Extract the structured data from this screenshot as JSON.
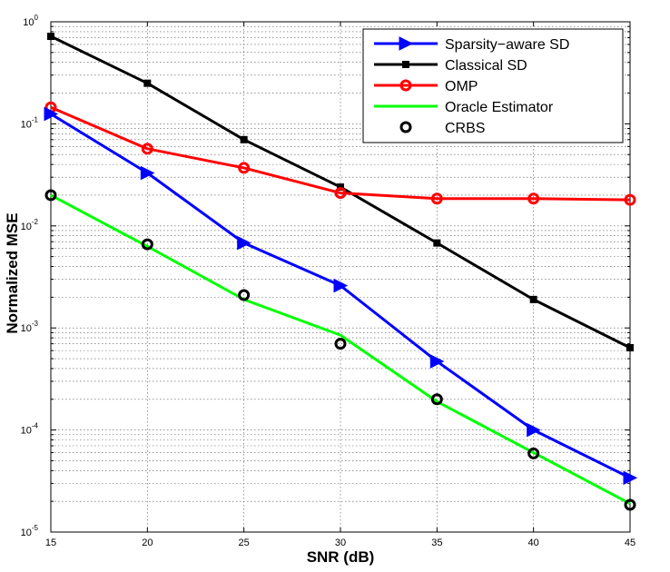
{
  "chart_data": {
    "type": "line",
    "title": "",
    "xlabel": "SNR (dB)",
    "ylabel": "Normalized MSE",
    "yscale": "log",
    "xlim": [
      15,
      45
    ],
    "ylim": [
      1e-05,
      1
    ],
    "grid": true,
    "legend_position": "top-right",
    "x": [
      15,
      20,
      25,
      30,
      35,
      40,
      45
    ],
    "x_ticks": [
      "15",
      "20",
      "25",
      "30",
      "35",
      "40",
      "45"
    ],
    "y_ticks": [
      {
        "base": "10",
        "exp": "0",
        "value": 1
      },
      {
        "base": "10",
        "exp": "-1",
        "value": 0.1
      },
      {
        "base": "10",
        "exp": "-2",
        "value": 0.01
      },
      {
        "base": "10",
        "exp": "-3",
        "value": 0.001
      },
      {
        "base": "10",
        "exp": "-4",
        "value": 0.0001
      },
      {
        "base": "10",
        "exp": "-5",
        "value": 1e-05
      }
    ],
    "series": [
      {
        "name": "Sparsity−aware SD",
        "color": "#0000ff",
        "marker": "triangle-right",
        "line": true,
        "values": [
          0.125,
          0.033,
          0.0068,
          0.0026,
          0.00047,
          0.0001,
          3.4e-05
        ]
      },
      {
        "name": "Classical SD",
        "color": "#000000",
        "marker": "square",
        "line": true,
        "values": [
          0.72,
          0.25,
          0.07,
          0.024,
          0.0068,
          0.0019,
          0.00064
        ]
      },
      {
        "name": "OMP",
        "color": "#ff0000",
        "marker": "circle",
        "line": true,
        "values": [
          0.145,
          0.057,
          0.037,
          0.021,
          0.0185,
          0.0185,
          0.018
        ]
      },
      {
        "name": "Oracle Estimator",
        "color": "#00ff00",
        "marker": "none",
        "line": true,
        "values": [
          0.02,
          0.0063,
          0.0019,
          0.00085,
          0.00019,
          6e-05,
          1.9e-05
        ]
      },
      {
        "name": "CRBS",
        "color": "#000000",
        "marker": "open-circle",
        "line": false,
        "values": [
          0.02,
          0.0066,
          0.0021,
          0.0007,
          0.0002,
          5.9e-05,
          1.85e-05
        ]
      }
    ]
  }
}
